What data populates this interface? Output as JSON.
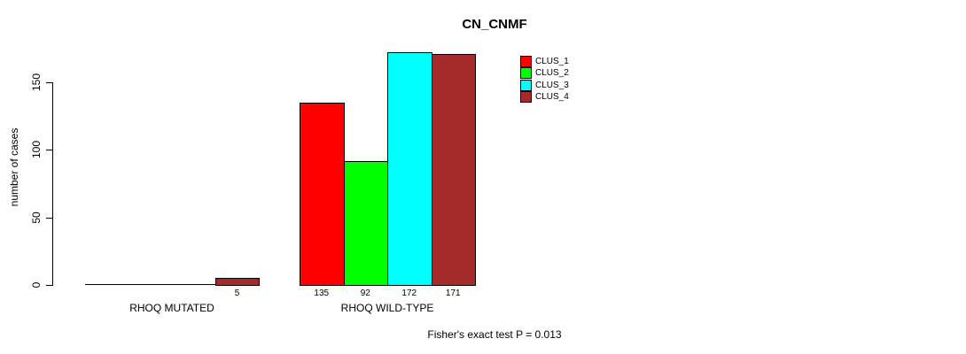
{
  "chart_data": {
    "type": "bar",
    "title": "CN_CNMF",
    "ylabel": "number of cases",
    "xlabel": "",
    "ylim": [
      0,
      172
    ],
    "yticks": [
      0,
      50,
      100,
      150
    ],
    "grid": false,
    "legend_position": "top-right-inside",
    "categories": [
      "RHOQ MUTATED",
      "RHOQ WILD-TYPE"
    ],
    "series": [
      {
        "name": "CLUS_1",
        "color": "#FF0000",
        "values": [
          0,
          135
        ]
      },
      {
        "name": "CLUS_2",
        "color": "#00FF00",
        "values": [
          0,
          92
        ]
      },
      {
        "name": "CLUS_3",
        "color": "#00FFFF",
        "values": [
          0,
          172
        ]
      },
      {
        "name": "CLUS_4",
        "color": "#A52A2A",
        "values": [
          5,
          171
        ]
      }
    ],
    "bar_value_labels": [
      [
        "",
        "",
        "",
        "5"
      ],
      [
        "135",
        "92",
        "172",
        "171"
      ]
    ],
    "annotation": "Fisher's exact test P = 0.013"
  }
}
